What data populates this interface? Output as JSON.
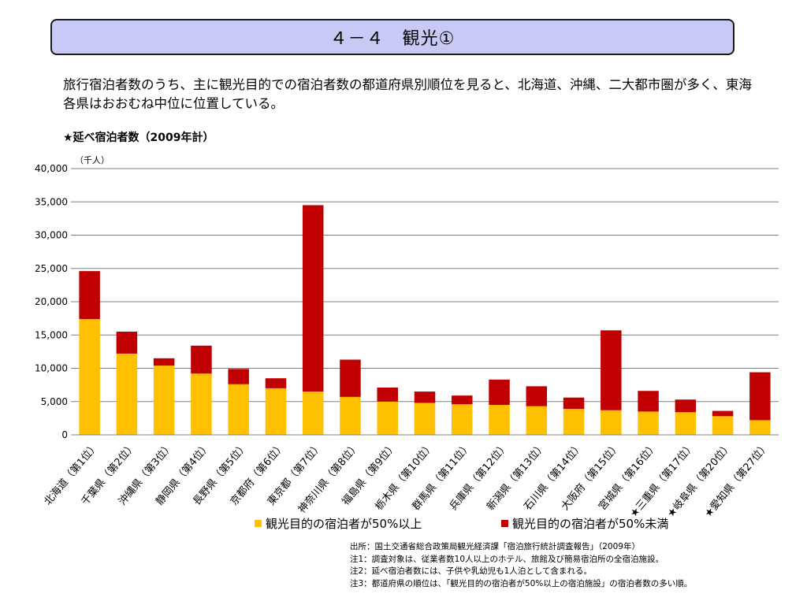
{
  "header": {
    "title": "４－４　観光①"
  },
  "description": "旅行宿泊者数のうち、主に観光目的での宿泊者数の都道府県別順位を見ると、北海道、沖縄、二大都市圏が多く、東海各県はおおむね中位に位置している。",
  "chart_heading": "★延べ宿泊者数（2009年計）",
  "chart_data": {
    "type": "bar",
    "stacked": true,
    "unit_label": "（千人）",
    "categories": [
      "北海道（第1位）",
      "千葉県（第2位）",
      "沖縄県（第3位）",
      "静岡県（第4位）",
      "長野県（第5位）",
      "京都府（第6位）",
      "東京都（第7位）",
      "神奈川県（第8位）",
      "福島県（第9位）",
      "栃木県（第10位）",
      "群馬県（第11位）",
      "兵庫県（第12位）",
      "新潟県（第13位）",
      "石川県（第14位）",
      "大阪府（第15位）",
      "宮城県（第16位）",
      "★三重県（第17位）",
      "★岐阜県（第20位）",
      "★愛知県（第27位）"
    ],
    "series": [
      {
        "name": "観光目的の宿泊者が50%以上",
        "color": "#FFC000",
        "values": [
          17400,
          12200,
          10400,
          9200,
          7600,
          7000,
          6500,
          5700,
          5000,
          4800,
          4600,
          4500,
          4300,
          3900,
          3700,
          3500,
          3400,
          2800,
          2200
        ]
      },
      {
        "name": "観光目的の宿泊者が50%未満",
        "color": "#C00000",
        "values": [
          7200,
          3300,
          1100,
          4200,
          2300,
          1500,
          28000,
          5600,
          2100,
          1700,
          1300,
          3800,
          3000,
          1700,
          12000,
          3100,
          1900,
          800,
          7200
        ]
      }
    ],
    "ylim": [
      0,
      40000
    ],
    "yticks": [
      "40,000",
      "35,000",
      "30,000",
      "25,000",
      "20,000",
      "15,000",
      "10,000",
      "5,000",
      "0"
    ],
    "grid": true,
    "legend_position": "bottom"
  },
  "notes": [
    "出所：国土交通省総合政策局観光経済課「宿泊旅行統計調査報告」（2009年）",
    "注1：調査対象は、従業者数10人以上のホテル、旅館及び簡易宿泊所の全宿泊施設。",
    "注2：延べ宿泊者数には、子供や乳幼児も1人泊として含まれる。",
    "注3：都道府県の順位は、「観光目的の宿泊者が50%以上の宿泊施設」の宿泊者数の多い順。"
  ]
}
